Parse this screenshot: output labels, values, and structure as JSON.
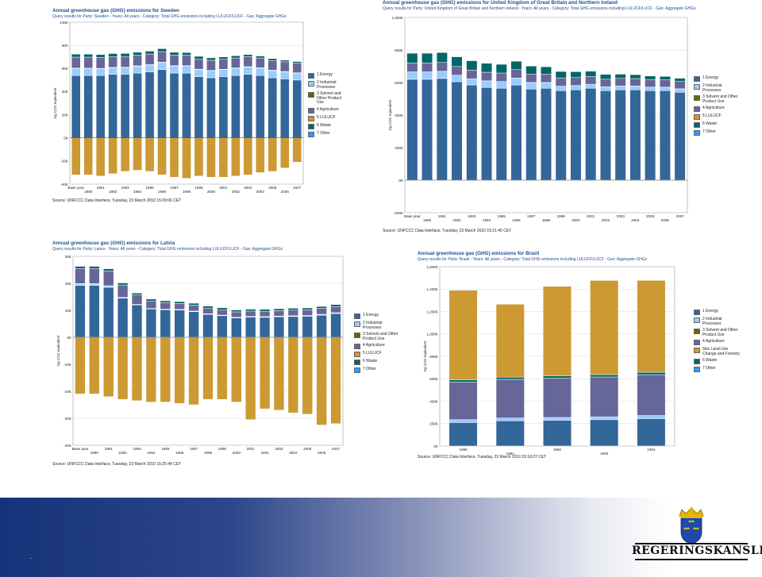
{
  "footer": {
    "dot": "."
  },
  "logo": {
    "text": "REGERINGSKANSLIET",
    "crest": "crowned-shield-icon"
  },
  "colors": {
    "energy": "#336699",
    "industrial": "#99ccff",
    "solvent": "#666600",
    "agriculture": "#666699",
    "lulucf": "#cc9933",
    "waste": "#006666",
    "other": "#3399ff"
  },
  "chart_data": [
    {
      "type": "bar",
      "title": "Annual greenhouse gas (GHG) emissions for Sweden",
      "subtitle": "Query results for Party: Sweden - Years: All years - Category: Total GHG emissions including LULUCF/LUCF - Gas: Aggregate GHGs",
      "ylabel": "Gg CO2 equivalent",
      "source": "Source: UNFCCC Data Interface, Tuesday, 23 March 2010 15:09:06 CET",
      "ylim": [
        -40000,
        100000
      ],
      "yticks": [
        -40000,
        -20000,
        0,
        20000,
        40000,
        60000,
        80000,
        100000
      ],
      "ytick_labels": [
        "-40K",
        "-20K",
        "0K",
        "20K",
        "40K",
        "60K",
        "80K",
        "100K"
      ],
      "categories": [
        "Base year",
        "1990",
        "1991",
        "1992",
        "1993",
        "1994",
        "1995",
        "1996",
        "1997",
        "1998",
        "1999",
        "2000",
        "2001",
        "2002",
        "2003",
        "2004",
        "2005",
        "2006",
        "2007"
      ],
      "xtick_labels": [
        "Base year",
        "1990",
        "1991",
        "1992",
        "1993",
        "1994",
        "1995",
        "1996",
        "1997",
        "1998",
        "1999",
        "2000",
        "2001",
        "2002",
        "2003",
        "2004",
        "2005",
        "2006",
        "2007"
      ],
      "legend": [
        "1 Energy",
        "2 Industrial Processes",
        "3 Solvent and Other Product Use",
        "4 Agriculture",
        "5 LULUCF",
        "6 Waste",
        "7 Other"
      ],
      "series": [
        {
          "name": "1 Energy",
          "color": "#336699",
          "values": [
            54000,
            54000,
            54000,
            55000,
            55000,
            56000,
            57000,
            59000,
            56000,
            56000,
            53000,
            52000,
            53000,
            54000,
            55000,
            54000,
            52000,
            51000,
            50000
          ]
        },
        {
          "name": "2 Industrial Processes",
          "color": "#99ccff",
          "values": [
            6000,
            6000,
            5800,
            5700,
            5800,
            6000,
            6000,
            6100,
            6200,
            6200,
            6100,
            6000,
            6000,
            6200,
            6300,
            6300,
            6200,
            6100,
            6000
          ]
        },
        {
          "name": "3 Solvent and Other Product Use",
          "color": "#666600",
          "values": [
            300,
            300,
            300,
            300,
            300,
            300,
            300,
            300,
            300,
            300,
            300,
            300,
            300,
            300,
            300,
            300,
            300,
            300,
            300
          ]
        },
        {
          "name": "4 Agriculture",
          "color": "#666699",
          "values": [
            9500,
            9500,
            9400,
            9300,
            9300,
            9200,
            9200,
            9200,
            9100,
            9000,
            8900,
            8800,
            8700,
            8600,
            8600,
            8500,
            8400,
            8400,
            8300
          ]
        },
        {
          "name": "5 LULUCF",
          "color": "#cc9933",
          "values": [
            -32000,
            -32000,
            -33000,
            -31000,
            -29000,
            -28000,
            -29000,
            -32000,
            -34000,
            -35000,
            -33000,
            -34000,
            -34000,
            -33000,
            -32000,
            -30000,
            -29000,
            -26000,
            -21000
          ]
        },
        {
          "name": "6 Waste",
          "color": "#006666",
          "values": [
            2600,
            2600,
            2600,
            2600,
            2600,
            2500,
            2500,
            2500,
            2400,
            2300,
            2200,
            2100,
            2000,
            1900,
            1800,
            1700,
            1600,
            1500,
            1400
          ]
        },
        {
          "name": "7 Other",
          "color": "#3399ff",
          "values": [
            0,
            0,
            0,
            0,
            0,
            0,
            0,
            0,
            0,
            0,
            0,
            0,
            0,
            0,
            0,
            0,
            0,
            0,
            0
          ]
        }
      ]
    },
    {
      "type": "bar",
      "title": "Annual greenhouse gas (GHG) emissions for United Kingdom of Great Britain and Northern Ireland",
      "subtitle": "Query results for Party: United Kingdom of Great Britain and Northern Ireland - Years: All years - Category: Total GHG emissions including LULUCF/LUCF - Gas: Aggregate GHGs",
      "ylabel": "Gg CO2 equivalent",
      "source": "Source: UNFCCC Data Interface, Tuesday, 23 March 2010 15:21:45 CET",
      "ylim": [
        -200000,
        1000000
      ],
      "yticks": [
        -200000,
        0,
        200000,
        400000,
        600000,
        800000,
        1000000
      ],
      "ytick_labels": [
        "-200K",
        "0K",
        "200K",
        "400K",
        "600K",
        "800K",
        "1,000K"
      ],
      "categories": [
        "Base year",
        "1990",
        "1991",
        "1992",
        "1993",
        "1994",
        "1995",
        "1996",
        "1997",
        "1998",
        "1999",
        "2000",
        "2001",
        "2002",
        "2003",
        "2004",
        "2005",
        "2006",
        "2007"
      ],
      "xtick_labels": [
        "Base year",
        "1990",
        "1991",
        "1992",
        "1993",
        "1994",
        "1995",
        "1996",
        "1997",
        "1998",
        "1999",
        "2000",
        "2001",
        "2002",
        "2003",
        "2004",
        "2005",
        "2006",
        "2007"
      ],
      "legend": [
        "1 Energy",
        "2 Industrial Processes",
        "3 Solvent and Other Product Use",
        "4 Agriculture",
        "5 LULUCF",
        "6 Waste",
        "7 Other"
      ],
      "series": [
        {
          "name": "1 Energy",
          "color": "#336699",
          "values": [
            620000,
            620000,
            625000,
            605000,
            585000,
            570000,
            565000,
            585000,
            560000,
            565000,
            550000,
            555000,
            565000,
            550000,
            555000,
            555000,
            550000,
            550000,
            540000
          ]
        },
        {
          "name": "2 Industrial Processes",
          "color": "#99ccff",
          "values": [
            45000,
            45000,
            44000,
            40000,
            38000,
            40000,
            41000,
            42000,
            40000,
            35000,
            27000,
            26000,
            24000,
            23000,
            23000,
            23000,
            22000,
            21000,
            21000
          ]
        },
        {
          "name": "3 Solvent and Other Product Use",
          "color": "#666600",
          "values": [
            500,
            500,
            500,
            500,
            500,
            500,
            500,
            500,
            500,
            500,
            500,
            500,
            500,
            500,
            500,
            500,
            500,
            500,
            500
          ]
        },
        {
          "name": "4 Agriculture",
          "color": "#666699",
          "values": [
            55000,
            55000,
            54000,
            53000,
            53000,
            53000,
            52000,
            52000,
            52000,
            52000,
            51000,
            49000,
            47000,
            47000,
            47000,
            46000,
            46000,
            45000,
            45000
          ]
        },
        {
          "name": "5 LULUCF",
          "color": "#cc9933",
          "values": [
            3000,
            3000,
            2800,
            2600,
            2400,
            2200,
            2000,
            1800,
            1500,
            1000,
            500,
            -500,
            -1000,
            -1500,
            -2000,
            -2500,
            -3000,
            -3500,
            -4000
          ]
        },
        {
          "name": "6 Waste",
          "color": "#006666",
          "values": [
            60000,
            60000,
            61000,
            60000,
            58000,
            55000,
            54000,
            52000,
            49000,
            45000,
            40000,
            36000,
            33000,
            30000,
            26000,
            24000,
            22000,
            21000,
            20000
          ]
        },
        {
          "name": "7 Other",
          "color": "#3399ff",
          "values": [
            0,
            0,
            0,
            0,
            0,
            0,
            0,
            0,
            0,
            0,
            0,
            0,
            0,
            0,
            0,
            0,
            0,
            0,
            0
          ]
        }
      ]
    },
    {
      "type": "bar",
      "title": "Annual greenhouse gas (GHG) emissions for Latvia",
      "subtitle": "Query results for Party: Latvia - Years: All years - Category: Total GHG emissions including LULUCF/LUCF - Gas: Aggregate GHGs",
      "ylabel": "Gg CO2 equivalent",
      "source": "Source: UNFCCC Data Interface, Tuesday, 23 March 2010 15:25:44 CET",
      "ylim": [
        -40000,
        30000
      ],
      "yticks": [
        -40000,
        -30000,
        -20000,
        -10000,
        0,
        10000,
        20000,
        30000
      ],
      "ytick_labels": [
        "-40K",
        "-30K",
        "-20K",
        "-10K",
        "0K",
        "10K",
        "20K",
        "30K"
      ],
      "categories": [
        "Base year",
        "1990",
        "1991",
        "1992",
        "1993",
        "1994",
        "1995",
        "1996",
        "1997",
        "1998",
        "1999",
        "2000",
        "2001",
        "2002",
        "2003",
        "2004",
        "2005",
        "2006",
        "2007"
      ],
      "xtick_labels": [
        "Base year",
        "1990",
        "1991",
        "1992",
        "1993",
        "1994",
        "1995",
        "1996",
        "1997",
        "1998",
        "1999",
        "2000",
        "2001",
        "2002",
        "2003",
        "2004",
        "2005",
        "2006",
        "2007"
      ],
      "legend": [
        "1 Energy",
        "2 Industrial Processes",
        "3 Solvent and Other Product Use",
        "4 Agriculture",
        "5 LULUCF",
        "6 Waste",
        "7 Other"
      ],
      "series": [
        {
          "name": "1 Energy",
          "color": "#336699",
          "values": [
            19200,
            19200,
            18500,
            14500,
            12000,
            10500,
            10200,
            10100,
            9500,
            8500,
            8000,
            7200,
            7500,
            7400,
            7600,
            7700,
            7800,
            8200,
            8800
          ]
        },
        {
          "name": "2 Industrial Processes",
          "color": "#99ccff",
          "values": [
            600,
            600,
            500,
            200,
            100,
            100,
            150,
            150,
            150,
            150,
            150,
            150,
            150,
            200,
            200,
            200,
            200,
            250,
            250
          ]
        },
        {
          "name": "3 Solvent and Other Product Use",
          "color": "#666600",
          "values": [
            100,
            100,
            100,
            100,
            100,
            80,
            80,
            80,
            80,
            80,
            80,
            80,
            80,
            80,
            80,
            80,
            80,
            80,
            80
          ]
        },
        {
          "name": "4 Agriculture",
          "color": "#666699",
          "values": [
            5600,
            5600,
            5500,
            4600,
            3500,
            2800,
            2400,
            2200,
            2200,
            2100,
            2000,
            2000,
            2000,
            2000,
            2000,
            2100,
            2100,
            2200,
            2300
          ]
        },
        {
          "name": "5 LULUCF",
          "color": "#cc9933",
          "values": [
            -21000,
            -21000,
            -22000,
            -23000,
            -23500,
            -24000,
            -24000,
            -24500,
            -25000,
            -23000,
            -23000,
            -24000,
            -30500,
            -26500,
            -27000,
            -28000,
            -28500,
            -32500,
            -32000
          ]
        },
        {
          "name": "6 Waste",
          "color": "#006666",
          "values": [
            800,
            800,
            800,
            750,
            700,
            700,
            700,
            700,
            700,
            700,
            700,
            700,
            700,
            700,
            700,
            700,
            700,
            700,
            700
          ]
        },
        {
          "name": "7 Other",
          "color": "#3399ff",
          "values": [
            0,
            0,
            0,
            0,
            0,
            0,
            0,
            0,
            0,
            0,
            0,
            0,
            0,
            0,
            0,
            0,
            0,
            0,
            0
          ]
        }
      ]
    },
    {
      "type": "bar",
      "title": "Annual greenhouse gas (GHG) emissions for Brazil",
      "subtitle": "Query results for Party: Brazil - Years: All years - Category: Total GHG emissions including LULUCF/LUCF - Gas: Aggregate GHGs",
      "ylabel": "Gg CO2 equivalent",
      "source": "Source: UNFCCC Data Interface, Tuesday, 23 March 2010 15:18:27 CET",
      "ylim": [
        0,
        1600000
      ],
      "yticks": [
        0,
        200000,
        400000,
        600000,
        800000,
        1000000,
        1200000,
        1400000,
        1600000
      ],
      "ytick_labels": [
        "0K",
        "200K",
        "400K",
        "600K",
        "800K",
        "1,000K",
        "1,200K",
        "1,400K",
        "1,600K"
      ],
      "categories": [
        "1990",
        "1991",
        "1992",
        "1993",
        "1994"
      ],
      "xtick_labels": [
        "1990",
        "1991",
        "1992",
        "1993",
        "1994"
      ],
      "legend": [
        "1 Energy",
        "2 Industrial Processes",
        "3 Solvent and Other Product Use",
        "4 Agriculture",
        "5bis Land-Use Change and Forestry",
        "6 Waste",
        "7 Other"
      ],
      "series": [
        {
          "name": "1 Energy",
          "color": "#336699",
          "values": [
            210000,
            225000,
            230000,
            235000,
            245000
          ]
        },
        {
          "name": "2 Industrial Processes",
          "color": "#99ccff",
          "values": [
            25000,
            25000,
            25000,
            26000,
            27000
          ]
        },
        {
          "name": "3 Solvent and Other Product Use",
          "color": "#666600",
          "values": [
            0,
            0,
            0,
            0,
            0
          ]
        },
        {
          "name": "4 Agriculture",
          "color": "#666699",
          "values": [
            335000,
            345000,
            350000,
            355000,
            365000
          ]
        },
        {
          "name": "5bis Land-Use Change and Forestry",
          "color": "#cc9933",
          "values": [
            800000,
            650000,
            800000,
            840000,
            820000
          ]
        },
        {
          "name": "6 Waste",
          "color": "#006666",
          "values": [
            20000,
            20000,
            20000,
            21000,
            21000
          ]
        },
        {
          "name": "7 Other",
          "color": "#3399ff",
          "values": [
            0,
            0,
            0,
            0,
            0
          ]
        }
      ]
    }
  ]
}
